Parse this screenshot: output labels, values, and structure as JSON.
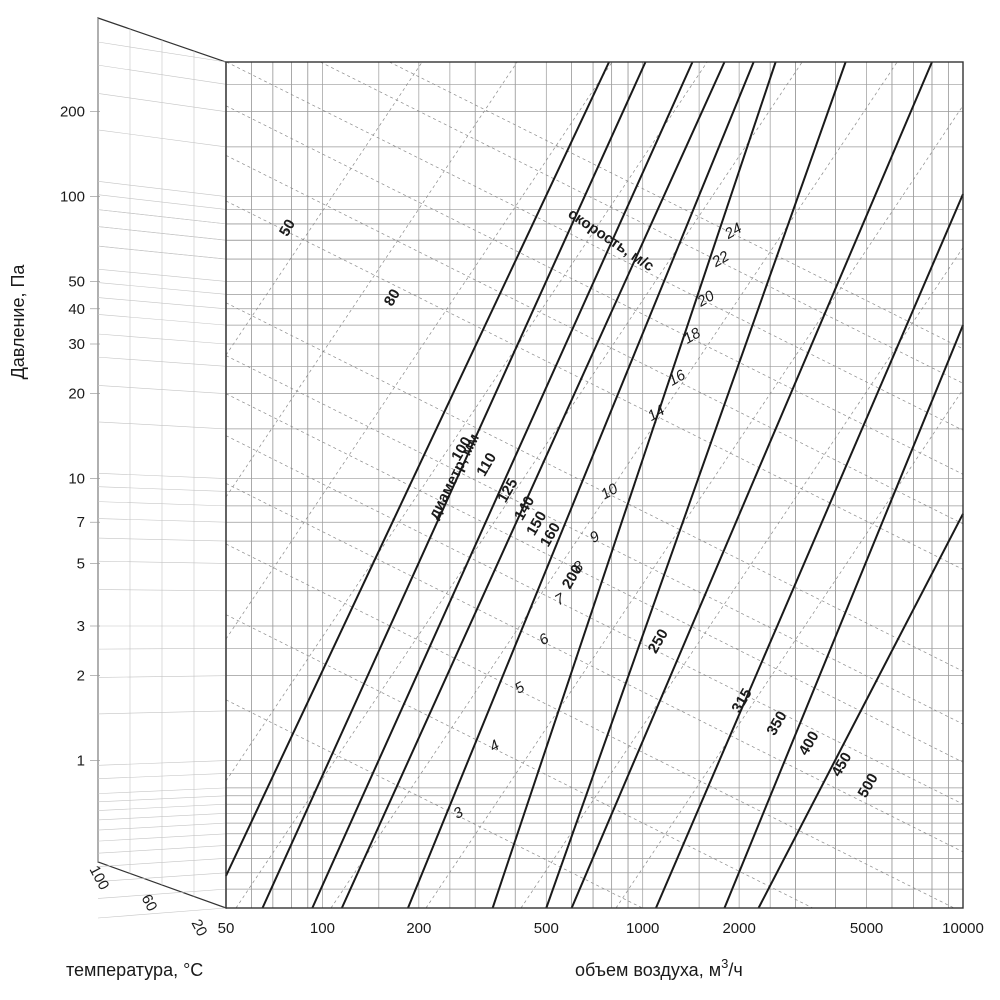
{
  "chart_data": {
    "type": "line",
    "title": "",
    "xlabel": "объем воздуха, м³/ч",
    "xlabel_parts": {
      "main": "объем воздуха, м",
      "sup": "3",
      "tail": "/ч"
    },
    "ylabel": "Давление, Па",
    "temperature_label": "температура, °C",
    "x_scale": "log",
    "y_scale": "log",
    "xlim": [
      50,
      10000
    ],
    "ylim": [
      0.3,
      300
    ],
    "x_ticks": [
      50,
      100,
      200,
      500,
      1000,
      2000,
      5000,
      10000
    ],
    "y_ticks": [
      200,
      100,
      50,
      40,
      30,
      20,
      10,
      7,
      5,
      3,
      2,
      1
    ],
    "temperature_ticks": [
      100,
      60,
      20
    ],
    "grid": true,
    "legend": "none",
    "diameter_caption": "диаметр, мм",
    "velocity_caption": "скорость, м/с",
    "diameters_mm": [
      100,
      110,
      125,
      140,
      150,
      160,
      200,
      250,
      315,
      350,
      400,
      450,
      500
    ],
    "velocities_mps": [
      3,
      4,
      5,
      6,
      7,
      8,
      9,
      10,
      14,
      16,
      18,
      20,
      22,
      24
    ],
    "velocity_label_points": [
      {
        "v": 3,
        "flow": 270,
        "pressure": 0.63
      },
      {
        "v": 4,
        "flow": 350,
        "pressure": 1.09
      },
      {
        "v": 5,
        "flow": 420,
        "pressure": 1.75
      },
      {
        "v": 6,
        "flow": 500,
        "pressure": 2.6
      },
      {
        "v": 7,
        "flow": 560,
        "pressure": 3.6
      },
      {
        "v": 8,
        "flow": 640,
        "pressure": 4.7
      },
      {
        "v": 9,
        "flow": 720,
        "pressure": 6.0
      },
      {
        "v": 10,
        "flow": 800,
        "pressure": 8.7
      },
      {
        "v": 14,
        "flow": 1120,
        "pressure": 16.5
      },
      {
        "v": 16,
        "flow": 1300,
        "pressure": 22
      },
      {
        "v": 18,
        "flow": 1450,
        "pressure": 31
      },
      {
        "v": 20,
        "flow": 1600,
        "pressure": 42
      },
      {
        "v": 22,
        "flow": 1780,
        "pressure": 58
      },
      {
        "v": 24,
        "flow": 1950,
        "pressure": 73
      }
    ],
    "extra_labels": [
      {
        "text": "50",
        "flow": 80,
        "pressure": 76
      },
      {
        "text": "80",
        "flow": 170,
        "pressure": 43
      }
    ],
    "series": [
      {
        "name": "100",
        "points": [
          [
            50,
            0.39
          ],
          [
            785,
            300
          ]
        ]
      },
      {
        "name": "110",
        "points": [
          [
            65,
            0.3
          ],
          [
            1020,
            300
          ]
        ]
      },
      {
        "name": "125",
        "points": [
          [
            93,
            0.3
          ],
          [
            1430,
            300
          ]
        ]
      },
      {
        "name": "140",
        "points": [
          [
            115,
            0.3
          ],
          [
            1800,
            300
          ]
        ]
      },
      {
        "name": "150",
        "points": [
          [
            185,
            0.3
          ],
          [
            2220,
            300
          ]
        ]
      },
      {
        "name": "160",
        "points": [
          [
            340,
            0.3
          ],
          [
            2600,
            300
          ]
        ]
      },
      {
        "name": "200",
        "points": [
          [
            500,
            0.3
          ],
          [
            4300,
            300
          ]
        ]
      },
      {
        "name": "250",
        "points": [
          [
            600,
            0.3
          ],
          [
            8000,
            300
          ]
        ]
      },
      {
        "name": "315",
        "points": [
          [
            1100,
            0.3
          ],
          [
            10000,
            102
          ]
        ]
      },
      {
        "name": "350",
        "points": [
          [
            1800,
            0.3
          ],
          [
            10000,
            35
          ]
        ]
      },
      {
        "name": "400",
        "points": [
          [
            2300,
            0.3
          ],
          [
            10000,
            7.5
          ]
        ]
      }
    ],
    "diameter_label_points": [
      {
        "name": "100",
        "flow": 280,
        "pressure": 12.5
      },
      {
        "name": "110",
        "flow": 335,
        "pressure": 11.0
      },
      {
        "name": "125",
        "flow": 390,
        "pressure": 8.9
      },
      {
        "name": "140",
        "flow": 440,
        "pressure": 7.7
      },
      {
        "name": "150",
        "flow": 480,
        "pressure": 6.8
      },
      {
        "name": "160",
        "flow": 530,
        "pressure": 6.2
      },
      {
        "name": "200",
        "flow": 620,
        "pressure": 4.4
      },
      {
        "name": "250",
        "flow": 1150,
        "pressure": 2.6
      },
      {
        "name": "315",
        "flow": 2100,
        "pressure": 1.6
      },
      {
        "name": "350",
        "flow": 2700,
        "pressure": 1.33
      },
      {
        "name": "400",
        "flow": 3400,
        "pressure": 1.13
      },
      {
        "name": "450",
        "flow": 4300,
        "pressure": 0.95
      },
      {
        "name": "500",
        "flow": 5200,
        "pressure": 0.8
      }
    ]
  }
}
